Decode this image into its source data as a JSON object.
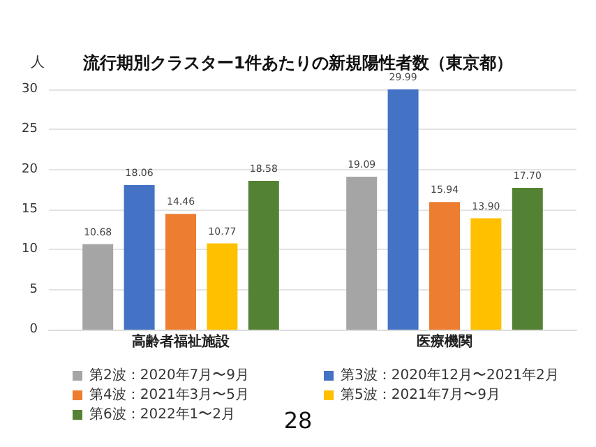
{
  "chart_data": {
    "type": "bar",
    "title": "流行期別クラスター1件あたりの新規陽性者数（東京都）",
    "ylabel": "人",
    "categories": [
      "高齢者福祉施設",
      "医療機関"
    ],
    "series": [
      {
        "name": "第2波：2020年7月〜9月",
        "color": "#a5a5a5",
        "values": [
          10.68,
          19.09
        ]
      },
      {
        "name": "第3波：2020年12月〜2021年2月",
        "color": "#4472c4",
        "values": [
          18.06,
          29.99
        ]
      },
      {
        "name": "第4波：2021年3月〜5月",
        "color": "#ed7d31",
        "values": [
          14.46,
          15.94
        ]
      },
      {
        "name": "第5波：2021年7月〜9月",
        "color": "#ffc000",
        "values": [
          10.77,
          13.9
        ]
      },
      {
        "name": "第6波：2022年1〜2月",
        "color": "#548235",
        "values": [
          18.58,
          17.7
        ]
      }
    ],
    "value_labels": [
      [
        "10.68",
        "19.09"
      ],
      [
        "18.06",
        "29.99"
      ],
      [
        "14.46",
        "15.94"
      ],
      [
        "10.77",
        "13.90"
      ],
      [
        "18.58",
        "17.70"
      ]
    ],
    "ylim": [
      0,
      30
    ],
    "yticks": [
      0,
      5,
      10,
      15,
      20,
      25,
      30
    ],
    "grid": "y",
    "legend": "bottom",
    "annotations": [
      "28"
    ]
  }
}
